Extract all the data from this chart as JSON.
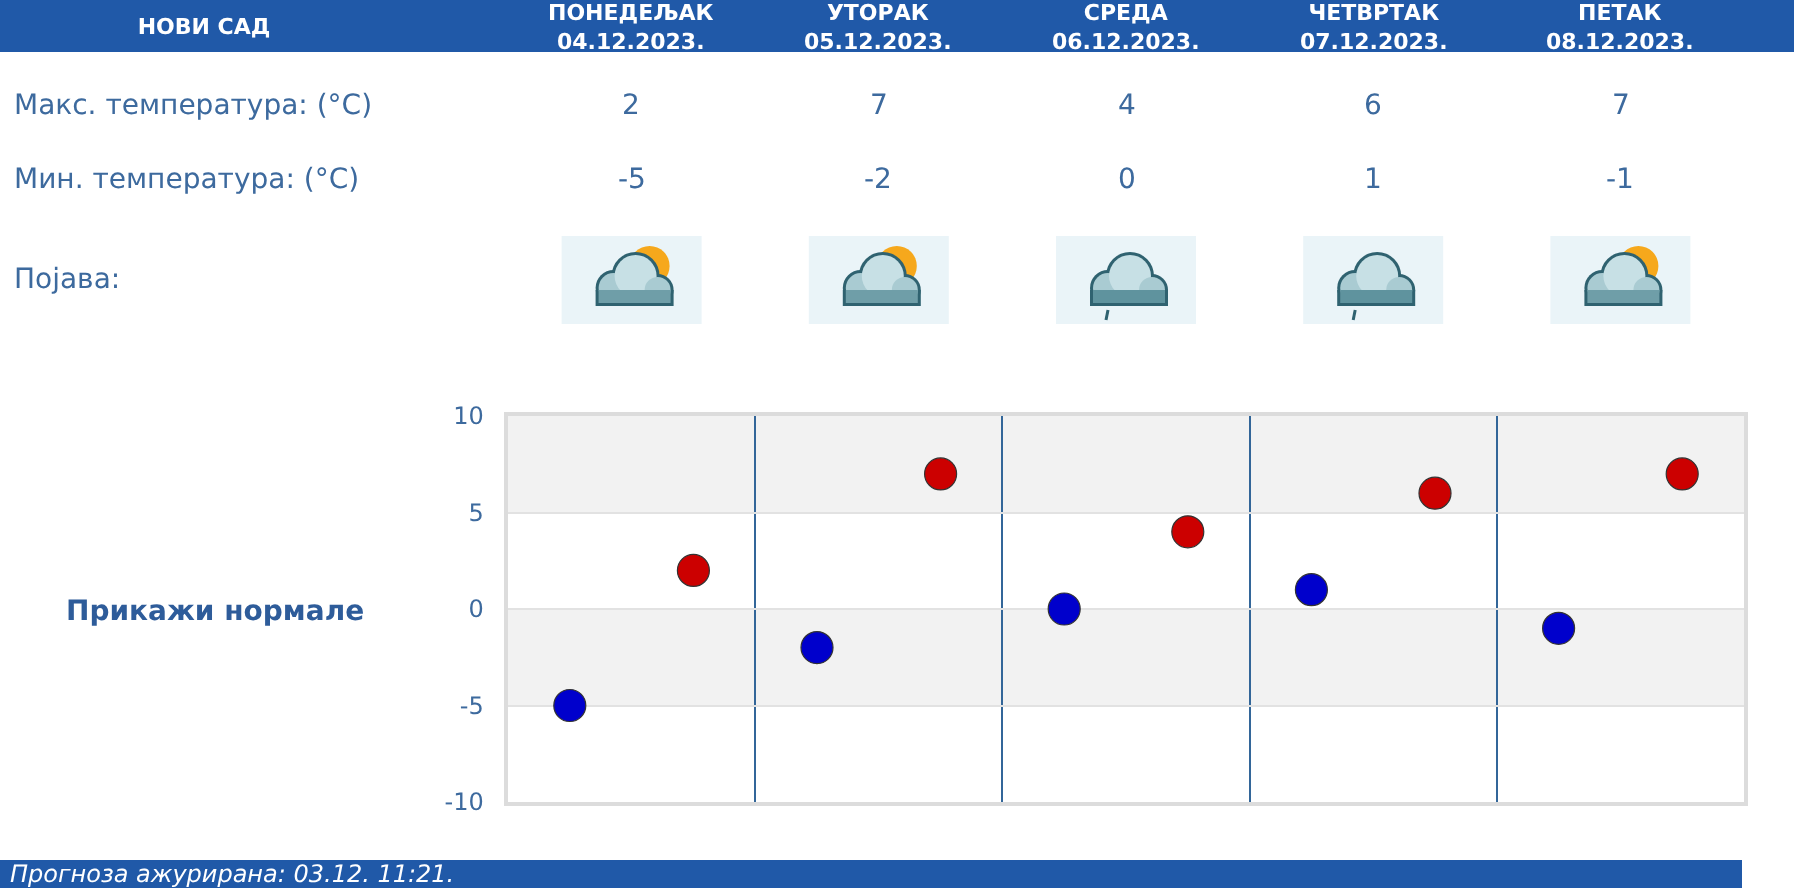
{
  "chart_data": {
    "type": "scatter",
    "title": "НОВИ САД",
    "categories": [
      null,
      null,
      null,
      null,
      null
    ],
    "series": [
      {
        "color": "#cc0000",
        "values": [
          2,
          7,
          4,
          6,
          7
        ]
      },
      {
        "color": "#0000cc",
        "values": [
          -5,
          -2,
          0,
          1,
          -1
        ]
      }
    ],
    "ylim": [
      -10,
      10
    ],
    "yticks": [
      -10,
      -5,
      0,
      5,
      10
    ],
    "grid": true,
    "marker": "circle",
    "data_labels": true,
    "tick_labels": "y",
    "bands": [
      {
        "axis": "y",
        "from": 5,
        "to": 10,
        "color": "#f2f2f2"
      },
      {
        "axis": "y",
        "from": -5,
        "to": 0,
        "color": "#f2f2f2"
      }
    ],
    "annotations": [
      "ПОНЕДЕЉАК\n04.12.2023.",
      "УТОРАК\n05.12.2023.",
      "СРЕДА\n06.12.2023.",
      "ЧЕТВРТАК\n07.12.2023.",
      "ПЕТАК\n08.12.2023.",
      "Макс. температура: (°C)",
      "Мин. температура: (°C)",
      "Појава:",
      "Прикажи нормале",
      "Прогноза ажурирана: 03.12. 11:21."
    ]
  }
}
